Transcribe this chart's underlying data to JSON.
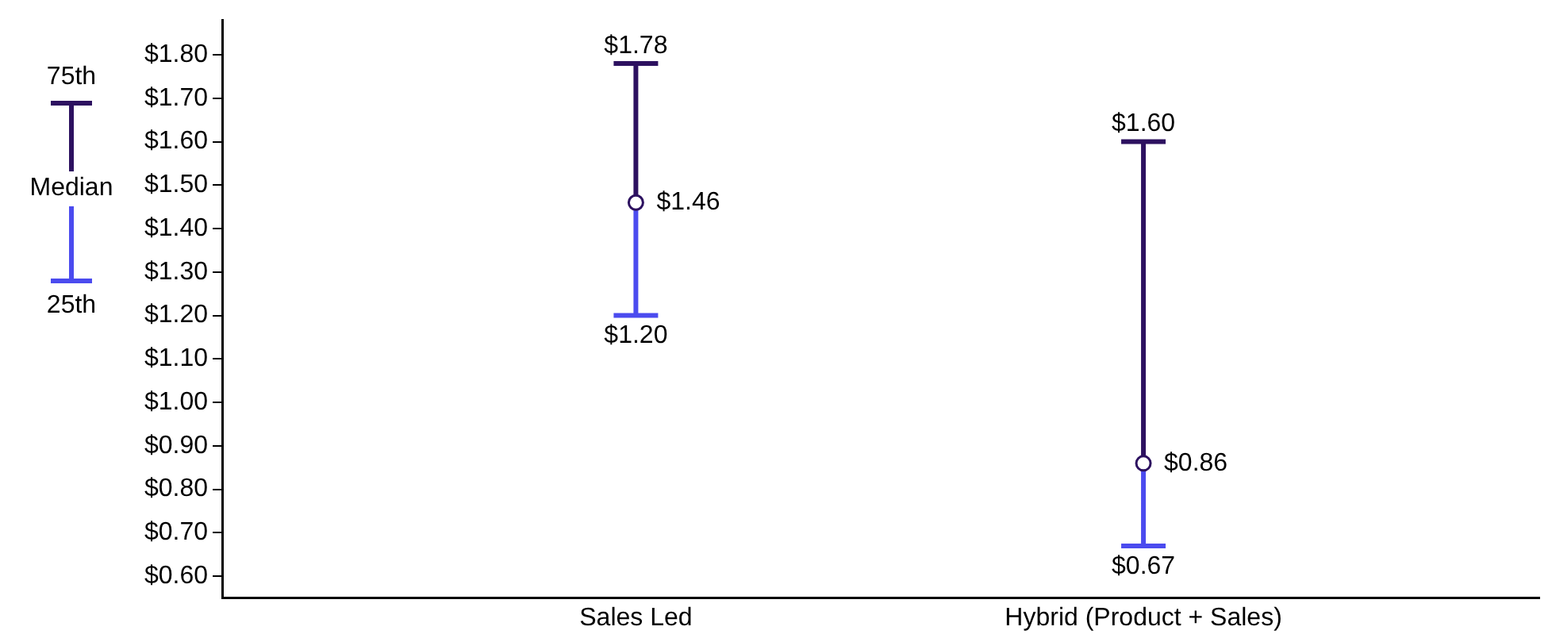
{
  "chart_data": {
    "type": "scatter",
    "categories": [
      "Sales Led",
      "Hybrid (Product + Sales)"
    ],
    "series": [
      {
        "name": "Median",
        "color": "#2d1160",
        "values": [
          1.46,
          0.86
        ],
        "errors": [
          [
            1.2,
            1.78
          ],
          [
            0.67,
            1.6
          ]
        ],
        "marker": "circle",
        "value_labels": [
          "$1.46",
          "$0.86"
        ]
      }
    ],
    "annotations": [
      "75th",
      "25th",
      "$1.78",
      "$1.20",
      "$1.60",
      "$0.67"
    ],
    "ylim": [
      0.55,
      1.88
    ],
    "yticks": [
      {
        "value": 0.6,
        "label": "$0.60"
      },
      {
        "value": 0.7,
        "label": "$0.70"
      },
      {
        "value": 0.8,
        "label": "$0.80"
      },
      {
        "value": 0.9,
        "label": "$0.90"
      },
      {
        "value": 1.0,
        "label": "$1.00"
      },
      {
        "value": 1.1,
        "label": "$1.10"
      },
      {
        "value": 1.2,
        "label": "$1.20"
      },
      {
        "value": 1.3,
        "label": "$1.30"
      },
      {
        "value": 1.4,
        "label": "$1.40"
      },
      {
        "value": 1.5,
        "label": "$1.50"
      },
      {
        "value": 1.6,
        "label": "$1.60"
      },
      {
        "value": 1.7,
        "label": "$1.70"
      },
      {
        "value": 1.8,
        "label": "$1.80"
      }
    ],
    "grid": false,
    "legend": "left"
  }
}
